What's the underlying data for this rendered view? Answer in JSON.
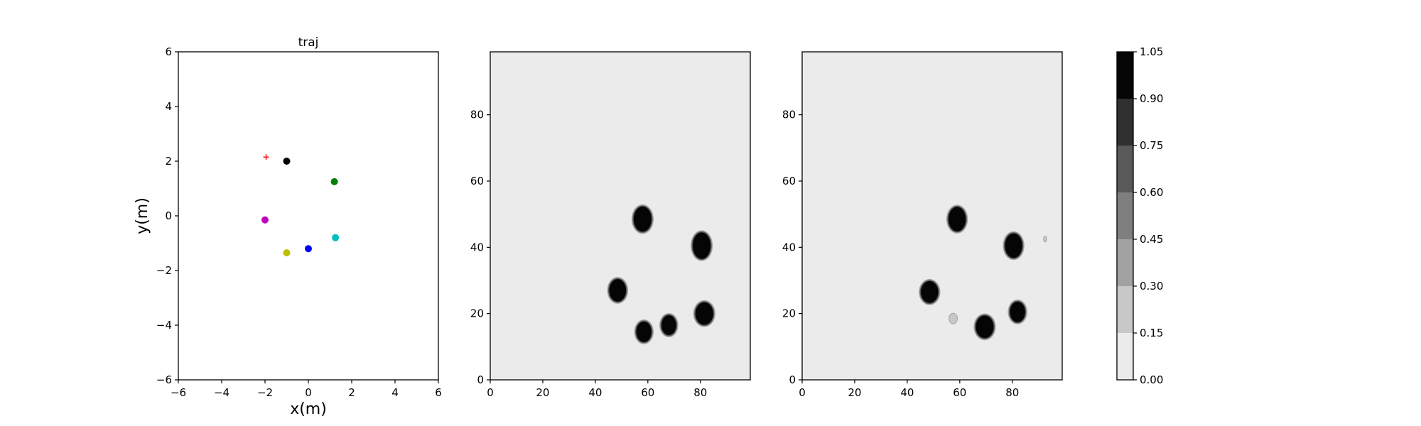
{
  "chart_data": [
    {
      "type": "scatter",
      "title": "traj",
      "xlabel": "x(m)",
      "ylabel": "y(m)",
      "xlim": [
        -6,
        6
      ],
      "ylim": [
        -6,
        6
      ],
      "xticks": [
        -6,
        -4,
        -2,
        0,
        2,
        4,
        6
      ],
      "yticks": [
        -6,
        -4,
        -2,
        0,
        2,
        4,
        6
      ],
      "tick_labels_x": [
        "−6",
        "−4",
        "−2",
        "0",
        "2",
        "4",
        "6"
      ],
      "tick_labels_y": [
        "−6",
        "−4",
        "−2",
        "0",
        "2",
        "4",
        "6"
      ],
      "grid": false,
      "points": [
        {
          "x": -1.0,
          "y": 2.0,
          "color": "#000000",
          "marker": "circle"
        },
        {
          "x": 1.2,
          "y": 1.25,
          "color": "#008000",
          "marker": "circle"
        },
        {
          "x": -2.0,
          "y": -0.15,
          "color": "#bf00bf",
          "marker": "circle"
        },
        {
          "x": 1.25,
          "y": -0.8,
          "color": "#00bfbf",
          "marker": "circle"
        },
        {
          "x": 0.0,
          "y": -1.2,
          "color": "#0000ff",
          "marker": "circle"
        },
        {
          "x": -1.0,
          "y": -1.35,
          "color": "#bfbf00",
          "marker": "circle"
        },
        {
          "x": -1.95,
          "y": 2.15,
          "color": "#ff0000",
          "marker": "plus"
        }
      ]
    },
    {
      "type": "heatmap",
      "xlim": [
        0,
        99
      ],
      "ylim": [
        0,
        99
      ],
      "xticks": [
        0,
        20,
        40,
        60,
        80
      ],
      "yticks": [
        0,
        20,
        40,
        60,
        80
      ],
      "tick_labels_x": [
        "0",
        "20",
        "40",
        "60",
        "80"
      ],
      "tick_labels_y": [
        "0",
        "20",
        "40",
        "60",
        "80"
      ],
      "background_level": 0.0,
      "blobs": [
        {
          "x": 58,
          "y": 48.5,
          "rx": 3.4,
          "ry": 3.8,
          "level": 1.0
        },
        {
          "x": 80.5,
          "y": 40.5,
          "rx": 3.4,
          "ry": 4.0,
          "level": 1.0
        },
        {
          "x": 48.5,
          "y": 27,
          "rx": 3.2,
          "ry": 3.4,
          "level": 1.0
        },
        {
          "x": 81.5,
          "y": 20,
          "rx": 3.4,
          "ry": 3.4,
          "level": 1.0
        },
        {
          "x": 68,
          "y": 16.5,
          "rx": 2.8,
          "ry": 3.0,
          "level": 1.0
        },
        {
          "x": 58.5,
          "y": 14.5,
          "rx": 2.9,
          "ry": 3.1,
          "level": 1.0
        }
      ]
    },
    {
      "type": "heatmap",
      "xlim": [
        0,
        99
      ],
      "ylim": [
        0,
        99
      ],
      "xticks": [
        0,
        20,
        40,
        60,
        80
      ],
      "yticks": [
        0,
        20,
        40,
        60,
        80
      ],
      "tick_labels_x": [
        "0",
        "20",
        "40",
        "60",
        "80"
      ],
      "tick_labels_y": [
        "0",
        "20",
        "40",
        "60",
        "80"
      ],
      "background_level": 0.0,
      "blobs": [
        {
          "x": 59,
          "y": 48.5,
          "rx": 3.3,
          "ry": 3.7,
          "level": 1.0
        },
        {
          "x": 80.5,
          "y": 40.5,
          "rx": 3.3,
          "ry": 3.7,
          "level": 1.0
        },
        {
          "x": 48.5,
          "y": 26.5,
          "rx": 3.3,
          "ry": 3.3,
          "level": 1.0
        },
        {
          "x": 82,
          "y": 20.5,
          "rx": 2.9,
          "ry": 3.1,
          "level": 1.0
        },
        {
          "x": 69.5,
          "y": 16,
          "rx": 3.4,
          "ry": 3.4,
          "level": 1.0
        },
        {
          "x": 57.5,
          "y": 18.5,
          "rx": 1.6,
          "ry": 1.6,
          "level": 0.25
        },
        {
          "x": 92.5,
          "y": 42.5,
          "rx": 0.6,
          "ry": 0.9,
          "level": 0.25
        }
      ]
    }
  ],
  "colorbar": {
    "levels": [
      0.0,
      0.15,
      0.3,
      0.45,
      0.6,
      0.75,
      0.9,
      1.05
    ],
    "tick_labels": [
      "0.00",
      "0.15",
      "0.30",
      "0.45",
      "0.60",
      "0.75",
      "0.90",
      "1.05"
    ],
    "colors": [
      "#ebebeb",
      "#c8c8c8",
      "#a2a2a2",
      "#7f7f7f",
      "#595959",
      "#303030",
      "#050505"
    ]
  }
}
